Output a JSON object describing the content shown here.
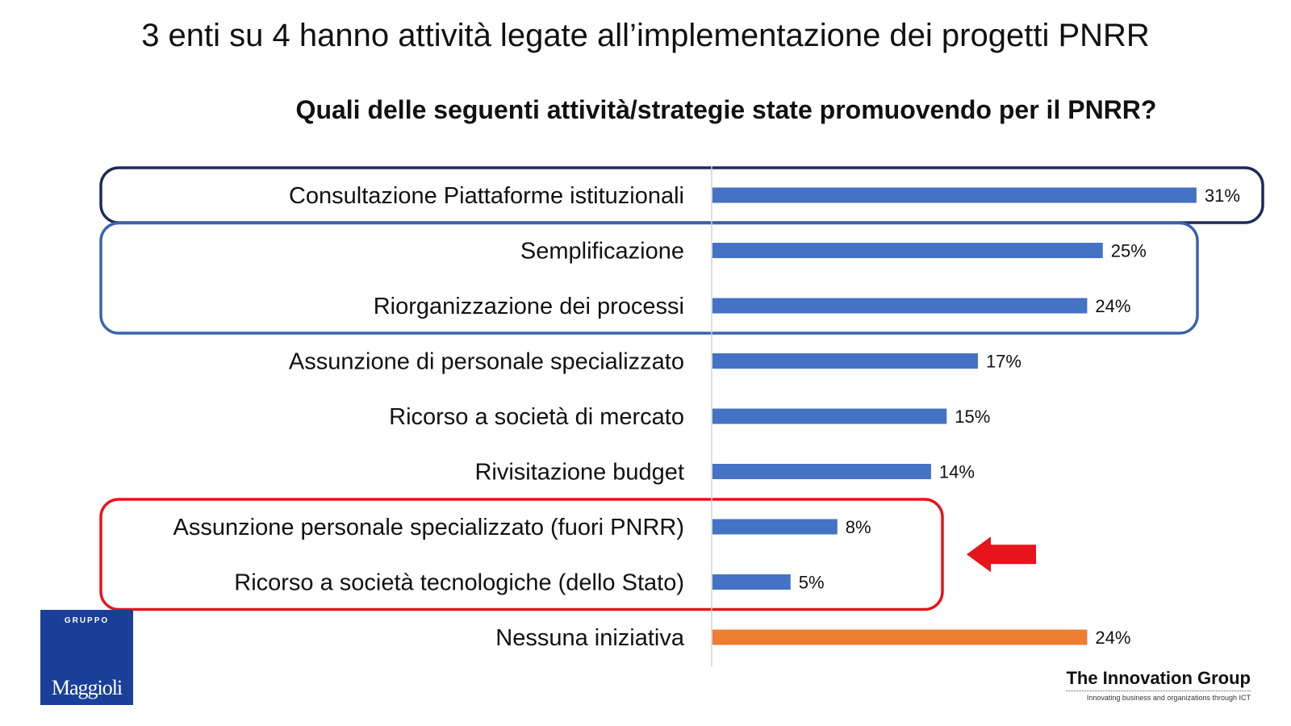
{
  "slide": {
    "title": "3 enti su 4 hanno attività legate all’implementazione dei progetti PNRR"
  },
  "chart_data": {
    "type": "bar",
    "orientation": "horizontal",
    "title": "Quali delle seguenti attività/strategie state promuovendo per il PNRR?",
    "xlabel": "",
    "ylabel": "",
    "grid": false,
    "categories": [
      "Consultazione Piattaforme istituzionali",
      "Semplificazione",
      "Riorganizzazione dei processi",
      "Assunzione di personale specializzato",
      "Ricorso a società di mercato",
      "Rivisitazione budget",
      "Assunzione personale specializzato (fuori PNRR)",
      "Ricorso a società tecnologiche (dello Stato)",
      "Nessuna iniziativa"
    ],
    "values": [
      31,
      25,
      24,
      17,
      15,
      14,
      8,
      5,
      24
    ],
    "value_labels": [
      "31%",
      "25%",
      "24%",
      "17%",
      "15%",
      "14%",
      "8%",
      "5%",
      "24%"
    ],
    "bar_colors": [
      "#4472c4",
      "#4472c4",
      "#4472c4",
      "#4472c4",
      "#4472c4",
      "#4472c4",
      "#4472c4",
      "#4472c4",
      "#ed7d31"
    ],
    "xlim": [
      0,
      31
    ],
    "highlights": [
      {
        "categories": [
          0
        ],
        "color": "#1f2a5a",
        "name": "highlight-box-platforms"
      },
      {
        "categories": [
          1,
          2
        ],
        "color": "#3a63b0",
        "name": "highlight-box-simplification"
      },
      {
        "categories": [
          6,
          7
        ],
        "color": "#e8141c",
        "name": "highlight-box-outside-pnrr"
      }
    ],
    "arrow": {
      "color": "#e8141c",
      "direction": "left",
      "points_to": "highlight-box-outside-pnrr"
    }
  },
  "logos": {
    "maggioli_group": "GRUPPO",
    "maggioli_name": "Maggioli",
    "tig_name": "The Innovation Group",
    "tig_tagline": "Innovating business and organizations through ICT"
  }
}
